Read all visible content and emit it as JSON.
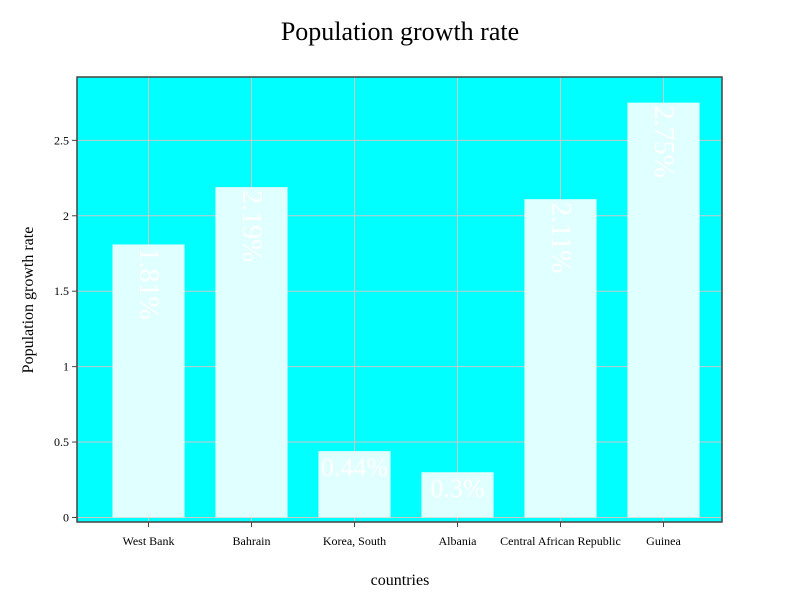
{
  "chart_data": {
    "type": "bar",
    "title": "Population growth rate",
    "xlabel": "countries",
    "ylabel": "Population growth rate",
    "categories": [
      "West Bank",
      "Bahrain",
      "Korea, South",
      "Albania",
      "Central African Republic",
      "Guinea"
    ],
    "values": [
      1.81,
      2.19,
      0.44,
      0.3,
      2.11,
      2.75
    ],
    "data_labels": [
      "1.81%",
      "2.19%",
      "0.44%",
      "0.3%",
      "2.11%",
      "2.75%"
    ],
    "yticks": [
      0,
      0.5,
      1,
      1.5,
      2,
      2.5
    ],
    "ytick_labels": [
      "0",
      "0.5",
      "1",
      "1.5",
      "2",
      "2.5"
    ],
    "ylim": [
      -0.03,
      2.92
    ],
    "grid": true,
    "colors": {
      "plot_background": "#00ffff",
      "bar_fill": "#e0ffff",
      "grid": "#c8c8c8",
      "frame": "#444444",
      "label_text": "#ffffff"
    }
  }
}
